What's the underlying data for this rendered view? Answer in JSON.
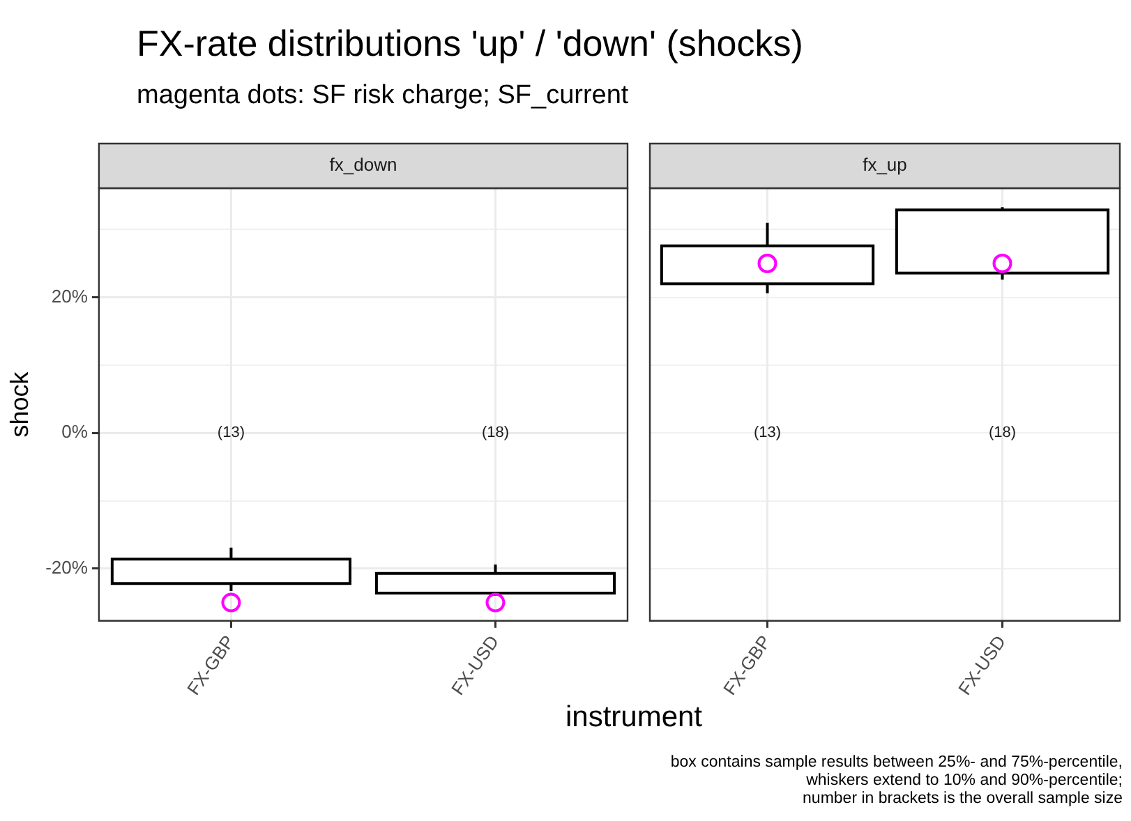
{
  "chart_data": [
    {
      "type": "box",
      "title": "FX-rate distributions 'up' / 'down' (shocks)",
      "subtitle": "magenta dots: SF risk charge; SF_current",
      "xlabel": "instrument",
      "ylabel": "shock",
      "categories": [
        "FX-GBP",
        "FX-USD"
      ],
      "boxes": [
        {
          "low": -23.3,
          "q1": -22.2,
          "q3": -18.6,
          "high": -16.9
        },
        {
          "low": -24.0,
          "q1": -23.6,
          "q3": -20.7,
          "high": -19.4
        }
      ],
      "series": [
        {
          "type": "scatter",
          "color": "#ff00ff",
          "x": [
            "FX-GBP",
            "FX-USD"
          ],
          "values": [
            -25,
            -25
          ]
        }
      ],
      "marker": "circle",
      "ylim": [
        -27.7,
        36.1
      ],
      "yticks": [
        {
          "value": -20,
          "label": "-20%"
        },
        {
          "value": -10,
          "label": null
        },
        {
          "value": 0,
          "label": "0%"
        },
        {
          "value": 10,
          "label": null
        },
        {
          "value": 20,
          "label": "20%"
        },
        {
          "value": 30,
          "label": null
        }
      ],
      "grid": true,
      "annotations": [
        "fx_down",
        "(13)",
        "(18)",
        "box contains sample results between 25%- and 75%-percentile,",
        "whiskers extend to 10% and 90%-percentile;",
        "number in brackets is the overall sample size"
      ]
    },
    {
      "type": "box",
      "categories": [
        "FX-GBP",
        "FX-USD"
      ],
      "boxes": [
        {
          "low": 20.6,
          "q1": 22.0,
          "q3": 27.6,
          "high": 31.0
        },
        {
          "low": 22.6,
          "q1": 23.6,
          "q3": 32.9,
          "high": 33.3
        }
      ],
      "series": [
        {
          "type": "scatter",
          "color": "#ff00ff",
          "x": [
            "FX-GBP",
            "FX-USD"
          ],
          "values": [
            25,
            25
          ]
        }
      ],
      "marker": "circle",
      "ylim": [
        -27.7,
        36.1
      ],
      "yticks": [
        {
          "value": -20,
          "label": null
        },
        {
          "value": -10,
          "label": null
        },
        {
          "value": 0,
          "label": null
        },
        {
          "value": 10,
          "label": null
        },
        {
          "value": 20,
          "label": null
        },
        {
          "value": 30,
          "label": null
        }
      ],
      "grid": true,
      "tick_labels": "x",
      "annotations": [
        "fx_up",
        "(13)",
        "(18)"
      ]
    }
  ]
}
